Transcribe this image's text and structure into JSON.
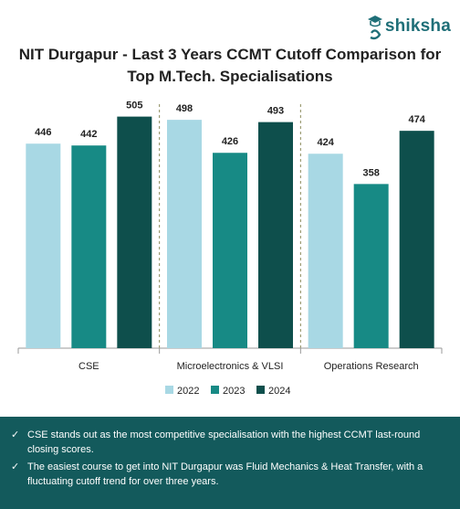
{
  "brand": {
    "name": "shiksha",
    "accent": "#1f6f78"
  },
  "title_line1": "NIT Durgapur - Last 3 Years CCMT Cutoff Comparison for",
  "title_line2": "Top M.Tech. Specialisations",
  "chart_data": {
    "type": "bar",
    "title": "NIT Durgapur - Last 3 Years CCMT Cutoff Comparison for Top M.Tech. Specialisations",
    "categories": [
      "CSE",
      "Microelectronics & VLSI",
      "Operations Research"
    ],
    "series": [
      {
        "name": "2022",
        "color": "#a8d8e4",
        "values": [
          446,
          498,
          424
        ]
      },
      {
        "name": "2023",
        "color": "#178a85",
        "values": [
          442,
          426,
          358
        ]
      },
      {
        "name": "2024",
        "color": "#0e4f4c",
        "values": [
          505,
          493,
          474
        ]
      }
    ],
    "ylim": [
      0,
      560
    ],
    "grid": false,
    "legend": "bottom",
    "data_labels": true
  },
  "notes": [
    "CSE stands out as the most competitive specialisation with the highest CCMT last-round closing scores.",
    "The easiest course to get into NIT Durgapur was Fluid Mechanics & Heat Transfer, with a fluctuating cutoff trend for over three years."
  ]
}
